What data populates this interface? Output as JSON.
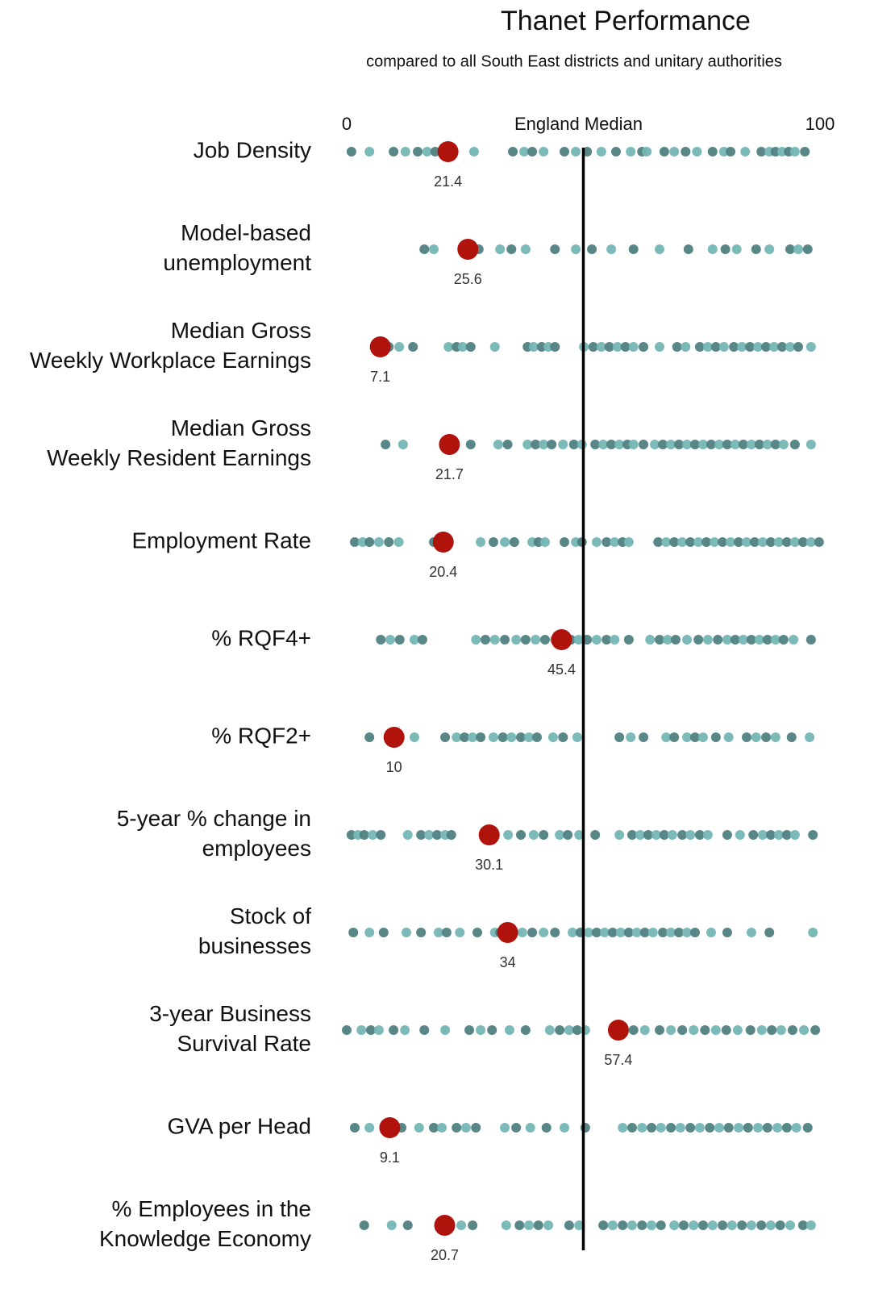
{
  "chart_data": {
    "type": "strip",
    "title": "Thanet Performance",
    "subtitle": "compared to all South East districts and unitary authorities",
    "xlim": [
      0,
      100
    ],
    "xticks": [
      0,
      100
    ],
    "median": {
      "value": 50,
      "label": "England Median"
    },
    "colors": [
      "#507f80",
      "#74b6b4"
    ],
    "highlight_color": "#b0120c",
    "rows": [
      {
        "label": [
          "Job Density"
        ],
        "value": 21.4,
        "others": [
          1,
          4.8,
          9.9,
          12.4,
          15,
          17,
          18.7,
          26.9,
          35.1,
          37.5,
          39.2,
          41.6,
          46,
          48.4,
          50.8,
          53.8,
          56.9,
          60,
          62.4,
          63.4,
          67.1,
          69.2,
          71.6,
          74,
          77.3,
          79.7,
          81.1,
          84.2,
          87.6,
          89.3,
          90.6,
          92,
          93.4,
          94.7,
          96.8
        ]
      },
      {
        "label": [
          "Model-based",
          "unemployment"
        ],
        "value": 25.6,
        "others": [
          16.4,
          18.4,
          27.9,
          32.4,
          34.8,
          37.8,
          44,
          48.4,
          51.8,
          55.9,
          60.6,
          66.1,
          72.2,
          77.3,
          80,
          82.4,
          86.5,
          89.3,
          93.7,
          95.4,
          97.4
        ]
      },
      {
        "label": [
          "Median Gross",
          "Weekly Workplace Earnings"
        ],
        "value": 7.1,
        "others": [
          8.9,
          11.1,
          14,
          21.5,
          23.2,
          24.5,
          26.2,
          31.3,
          38.2,
          39.5,
          41.2,
          42.6,
          44,
          50.1,
          52.1,
          53.8,
          55.5,
          57.2,
          58.9,
          60.6,
          62.7,
          66.1,
          69.8,
          71.6,
          74.6,
          76.3,
          78,
          79.7,
          81.8,
          83.5,
          85.2,
          86.9,
          88.6,
          90.3,
          92,
          93.7,
          95.4,
          98.1
        ]
      },
      {
        "label": [
          "Median Gross",
          "Weekly Resident Earnings"
        ],
        "value": 21.7,
        "others": [
          8.2,
          11.9,
          26.2,
          32,
          34,
          38.2,
          39.9,
          41.6,
          43.3,
          45.7,
          48,
          49.7,
          52.5,
          54.2,
          55.9,
          57.6,
          59.3,
          60.6,
          62.7,
          65.1,
          66.8,
          68.5,
          70.2,
          71.9,
          73.6,
          75.3,
          77,
          78.7,
          80.4,
          82.1,
          83.8,
          85.5,
          87.2,
          88.9,
          90.6,
          92.3,
          94.7,
          98.1
        ]
      },
      {
        "label": [
          "Employment Rate"
        ],
        "value": 20.4,
        "others": [
          1.7,
          3.4,
          4.8,
          6.8,
          8.9,
          11,
          18.4,
          28.3,
          31,
          33.4,
          35.4,
          39.2,
          40.5,
          41.9,
          46,
          48.4,
          49.7,
          52.8,
          54.9,
          56.6,
          58.3,
          59.6,
          65.8,
          67.5,
          69.2,
          70.9,
          72.6,
          74.3,
          76,
          77.7,
          79.4,
          81.1,
          82.8,
          84.5,
          86.2,
          87.9,
          89.6,
          91.3,
          93,
          94.7,
          96.4,
          98.1,
          99.8
        ]
      },
      {
        "label": [
          "% RQF4+"
        ],
        "value": 45.4,
        "others": [
          7.2,
          9.2,
          11.2,
          14.3,
          16,
          27.3,
          29.3,
          31.3,
          33.4,
          35.8,
          37.8,
          39.9,
          41.9,
          44,
          47.4,
          49,
          50.8,
          52.8,
          54.9,
          56.6,
          59.6,
          64.1,
          66.1,
          67.8,
          69.5,
          71.9,
          74.3,
          76.3,
          78.4,
          80.4,
          82.1,
          83.8,
          85.5,
          87.2,
          88.9,
          90.6,
          92.3,
          94.4,
          98.1
        ]
      },
      {
        "label": [
          "% RQF2+"
        ],
        "value": 10,
        "others": [
          4.8,
          14.3,
          20.8,
          23.2,
          24.9,
          26.6,
          28.3,
          31,
          33,
          34.8,
          36.8,
          38.5,
          40.2,
          43.6,
          45.7,
          48.7,
          57.6,
          60,
          62.7,
          67.5,
          69.2,
          71.9,
          73.6,
          75.3,
          78,
          80.7,
          84.5,
          86.5,
          88.6,
          90.6,
          94,
          97.8
        ]
      },
      {
        "label": [
          "5-year % change in",
          "employees"
        ],
        "value": 30.1,
        "others": [
          1,
          2.4,
          3.7,
          5.5,
          7.2,
          12.9,
          15.7,
          17.4,
          19.1,
          20.8,
          22.1,
          34.1,
          36.8,
          39.5,
          41.6,
          45,
          46.7,
          49.1,
          52.5,
          57.6,
          60.3,
          62,
          63.7,
          65.4,
          67.1,
          68.8,
          70.9,
          72.6,
          74.6,
          76.3,
          80.4,
          83.1,
          85.9,
          87.9,
          89.6,
          91.3,
          93,
          94.7,
          98.5
        ]
      },
      {
        "label": [
          "Stock of",
          "businesses"
        ],
        "value": 34,
        "others": [
          1.4,
          4.8,
          7.8,
          12.6,
          15.7,
          19.4,
          21.1,
          23.9,
          27.6,
          31.3,
          32.4,
          37.1,
          39.2,
          41.6,
          44,
          47.7,
          49.4,
          51.1,
          52.8,
          54.5,
          56.2,
          57.9,
          59.6,
          61.3,
          63,
          64.7,
          66.8,
          68.5,
          70.2,
          71.9,
          73.6,
          77,
          80.4,
          85.5,
          89.3,
          98.5
        ]
      },
      {
        "label": [
          "3-year Business",
          "Survival Rate"
        ],
        "value": 57.4,
        "others": [
          0,
          3.1,
          5.1,
          6.8,
          9.9,
          12.3,
          16.4,
          20.8,
          25.9,
          28.3,
          30.7,
          34.4,
          37.8,
          42.9,
          45,
          47,
          48.7,
          50.4,
          60.6,
          63,
          66.1,
          68.5,
          70.9,
          73.3,
          75.7,
          78,
          80.2,
          82.6,
          85.3,
          87.7,
          89.8,
          91.8,
          94.2,
          96.6,
          99
        ]
      },
      {
        "label": [
          "GVA per Head"
        ],
        "value": 9.1,
        "others": [
          1.7,
          4.8,
          11.6,
          15.3,
          18.4,
          20.1,
          23.2,
          25.2,
          27.3,
          33.4,
          35.8,
          38.8,
          42.2,
          46,
          50.4,
          58.3,
          60.3,
          62.4,
          64.4,
          66.4,
          68.5,
          70.5,
          72.6,
          74.6,
          76.7,
          78.7,
          80.7,
          82.8,
          84.8,
          86.9,
          88.9,
          91,
          93,
          95,
          97.4
        ]
      },
      {
        "label": [
          "% Employees in the",
          "Knowledge Economy"
        ],
        "value": 20.7,
        "others": [
          3.7,
          9.5,
          12.9,
          24.2,
          26.6,
          33.7,
          36.5,
          38.5,
          40.5,
          42.6,
          47,
          49.1,
          54.2,
          56.2,
          58.3,
          60.3,
          62.4,
          64.4,
          66.4,
          69.2,
          71.2,
          73.3,
          75.3,
          77.3,
          79.4,
          81.4,
          83.5,
          85.5,
          87.6,
          89.6,
          91.6,
          93.7,
          96.4,
          98.1
        ]
      }
    ]
  }
}
